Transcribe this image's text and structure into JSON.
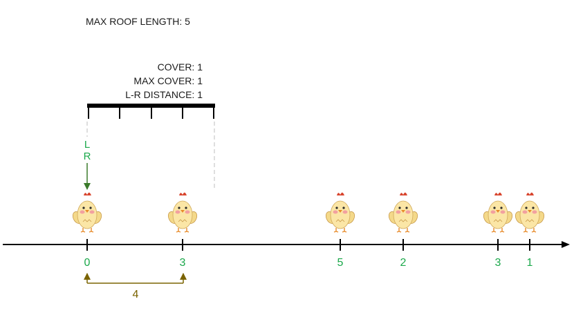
{
  "header": {
    "max_roof_length": "MAX ROOF LENGTH: 5"
  },
  "stats": {
    "cover": "COVER: 1",
    "max_cover": "MAX COVER: 1",
    "lr_distance": "L-R DISTANCE: 1"
  },
  "pointers": {
    "left": "L",
    "right": "R"
  },
  "chickens": [
    "0",
    "3",
    "5",
    "2",
    "3",
    "1"
  ],
  "span_label": "4",
  "colors": {
    "axis": "#000000",
    "tick_label": "#1aa84a",
    "pointer_arrow": "#3a7a2a",
    "span_arrow": "#7a6300",
    "roof": "#000000",
    "guide": "#c8c8c8"
  }
}
